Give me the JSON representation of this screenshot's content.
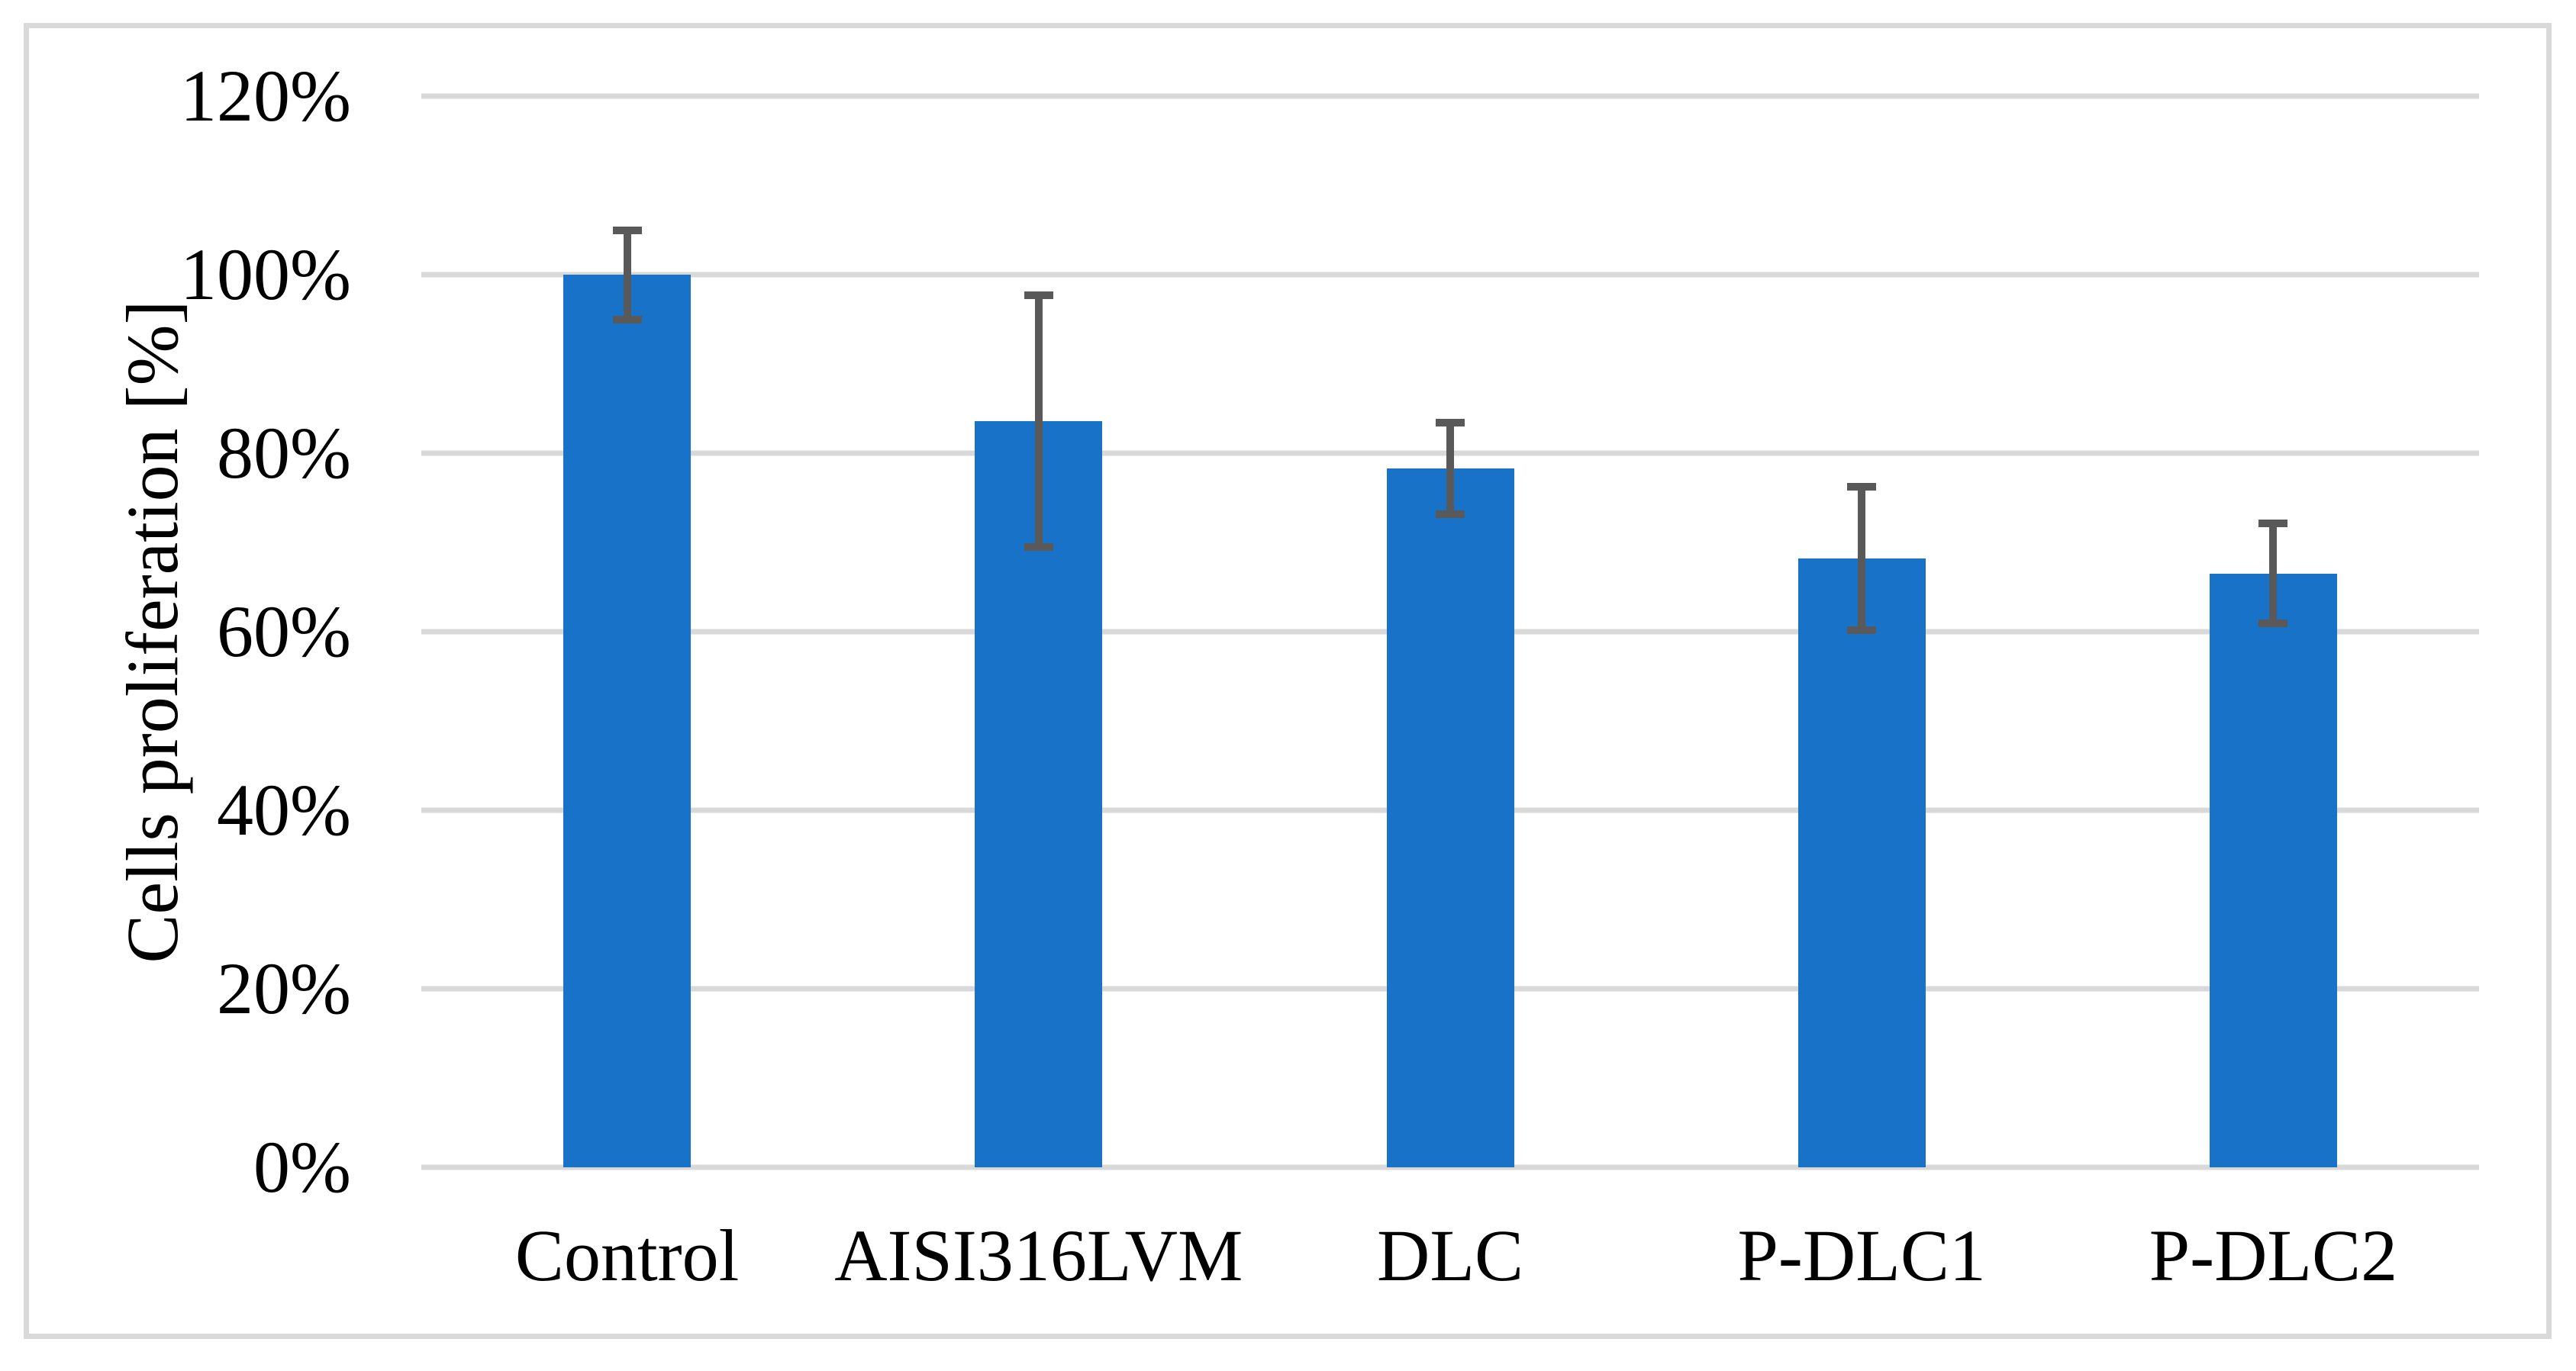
{
  "figure": {
    "background_color": "#FFFFFF",
    "frame_color": "#D9D9D9"
  },
  "chart_data": {
    "type": "bar",
    "title": "",
    "xlabel": "",
    "ylabel": "Cells proliferation [%]",
    "categories": [
      "Control",
      "AISI316LVM",
      "DLC",
      "P-DLC1",
      "P-DLC2"
    ],
    "values": [
      100,
      83.6,
      78.3,
      68.2,
      66.5
    ],
    "error_bars_plus_minus": [
      5,
      14.1,
      5.1,
      8,
      5.6
    ],
    "ylim": [
      0,
      120
    ],
    "ytick_values": [
      0,
      20,
      40,
      60,
      80,
      100,
      120
    ],
    "ytick_labels": [
      "0%",
      "20%",
      "40%",
      "60%",
      "80%",
      "100%",
      "120%"
    ],
    "grid": true,
    "legend": false,
    "bar_color": "#1873C8",
    "error_bar_color": "#595959",
    "gridline_color": "#D9D9D9",
    "text_color": "#000000"
  }
}
